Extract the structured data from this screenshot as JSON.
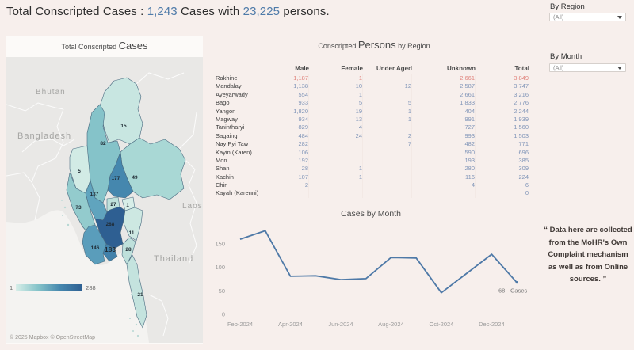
{
  "header": {
    "title_prefix": "Total Conscripted Cases : ",
    "cases_count": "1,243",
    "title_middle": " Cases with ",
    "persons_count": "23,225",
    "title_suffix": " persons."
  },
  "filters": {
    "by_region": {
      "label": "By Region",
      "value": "(All)"
    },
    "by_month": {
      "label": "By Month",
      "value": "(All)"
    }
  },
  "map_panel": {
    "title_small": "Total Conscripted ",
    "title_large": "Cases",
    "neighbor_labels": [
      "Bhutan",
      "Bangladesh",
      "Laos",
      "Thailand"
    ],
    "legend": {
      "min": "1",
      "max": "288"
    },
    "attribution": "© 2025 Mapbox © OpenStreetMap",
    "regions": [
      {
        "name": "Kachin",
        "value": 15,
        "color": "#c8e6e1"
      },
      {
        "name": "Sagaing",
        "value": 82,
        "color": "#85c3c9"
      },
      {
        "name": "Chin",
        "value": 5,
        "color": "#d2ebe5"
      },
      {
        "name": "Shan",
        "value": 49,
        "color": "#a9d8d5"
      },
      {
        "name": "Mandalay",
        "value": 177,
        "color": "#4587ae"
      },
      {
        "name": "Magway",
        "value": 137,
        "color": "#60a4be"
      },
      {
        "name": "Nay Pyi Taw",
        "value": 27,
        "color": "#bfe1db"
      },
      {
        "name": "Kayah",
        "value": 1,
        "color": "#d7eee8"
      },
      {
        "name": "Rakhine",
        "value": 73,
        "color": "#93cbcd"
      },
      {
        "name": "Bago",
        "value": 288,
        "color": "#2e5f92"
      },
      {
        "name": "Yangon",
        "value": 183,
        "color": "#4181aa"
      },
      {
        "name": "Ayeyarwady",
        "value": 146,
        "color": "#5a9dbb"
      },
      {
        "name": "Kayin",
        "value": 11,
        "color": "#cde8e2"
      },
      {
        "name": "Mon",
        "value": 28,
        "color": "#bee0db"
      },
      {
        "name": "Tanintharyi",
        "value": 21,
        "color": "#c4e3de"
      }
    ]
  },
  "table": {
    "title_small_1": "Conscripted ",
    "title_large": "Persons",
    "title_small_2": " by Region",
    "columns": [
      "Male",
      "Female",
      "Under Aged",
      "Unknown",
      "Total"
    ],
    "rows": [
      {
        "region": "Rakhine",
        "values": [
          "1,187",
          "1",
          "",
          "2,661",
          "3,849"
        ],
        "highlight": true
      },
      {
        "region": "Mandalay",
        "values": [
          "1,138",
          "10",
          "12",
          "2,587",
          "3,747"
        ],
        "highlight": false
      },
      {
        "region": "Ayeyarwady",
        "values": [
          "554",
          "1",
          "",
          "2,661",
          "3,216"
        ],
        "highlight": false
      },
      {
        "region": "Bago",
        "values": [
          "933",
          "5",
          "5",
          "1,833",
          "2,776"
        ],
        "highlight": false
      },
      {
        "region": "Yangon",
        "values": [
          "1,820",
          "19",
          "1",
          "404",
          "2,244"
        ],
        "highlight": false
      },
      {
        "region": "Magway",
        "values": [
          "934",
          "13",
          "1",
          "991",
          "1,939"
        ],
        "highlight": false
      },
      {
        "region": "Tanintharyi",
        "values": [
          "829",
          "4",
          "",
          "727",
          "1,560"
        ],
        "highlight": false
      },
      {
        "region": "Sagaing",
        "values": [
          "484",
          "24",
          "2",
          "993",
          "1,503"
        ],
        "highlight": false
      },
      {
        "region": "Nay Pyi Taw",
        "values": [
          "282",
          "",
          "7",
          "482",
          "771"
        ],
        "highlight": false
      },
      {
        "region": "Kayin (Karen)",
        "values": [
          "106",
          "",
          "",
          "590",
          "696"
        ],
        "highlight": false
      },
      {
        "region": "Mon",
        "values": [
          "192",
          "",
          "",
          "193",
          "385"
        ],
        "highlight": false
      },
      {
        "region": "Shan",
        "values": [
          "28",
          "1",
          "",
          "280",
          "309"
        ],
        "highlight": false
      },
      {
        "region": "Kachin",
        "values": [
          "107",
          "1",
          "",
          "116",
          "224"
        ],
        "highlight": false
      },
      {
        "region": "Chin",
        "values": [
          "2",
          "",
          "",
          "4",
          "6"
        ],
        "highlight": false
      },
      {
        "region": "Kayah (Karenni)",
        "values": [
          "",
          "",
          "",
          "",
          "0"
        ],
        "highlight": false
      }
    ]
  },
  "chart_data": {
    "type": "line",
    "title": "Cases by Month",
    "x": [
      "Feb-2024",
      "Mar-2024",
      "Apr-2024",
      "May-2024",
      "Jun-2024",
      "Jul-2024",
      "Aug-2024",
      "Sep-2024",
      "Oct-2024",
      "Nov-2024",
      "Dec-2024",
      "Jan-2025"
    ],
    "values": [
      160,
      178,
      81,
      82,
      74,
      76,
      121,
      120,
      46,
      87,
      128,
      68
    ],
    "shown_x_labels": [
      "Feb-2024",
      "Apr-2024",
      "Jun-2024",
      "Aug-2024",
      "Oct-2024",
      "Dec-2024"
    ],
    "y_ticks": [
      0,
      50,
      100,
      150
    ],
    "ylim": [
      0,
      170
    ],
    "grid": false,
    "legend": "none",
    "annotation": "68 - Cases",
    "line_color": "#4e79a7"
  },
  "note": {
    "text": "“ Data here are collected from the MoHR's Own Complaint mechanism as well as from Online sources. ”"
  },
  "colors": {
    "background": "#f7efec",
    "accent_blue": "#4f7ba9",
    "table_value_blue": "#8095b8",
    "table_value_red": "#e0837c",
    "map_land": "#e9e8e6",
    "map_sea": "#f4f3f1"
  }
}
